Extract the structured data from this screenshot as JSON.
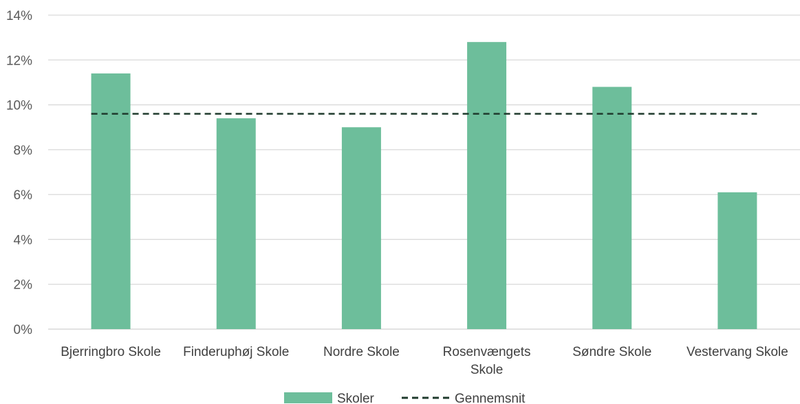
{
  "chart_data": {
    "type": "bar",
    "categories": [
      "Bjerringbro Skole",
      "Finderuphøj Skole",
      "Nordre Skole",
      "Rosenvængets Skole",
      "Søndre Skole",
      "Vestervang Skole"
    ],
    "category_lines": [
      [
        "Bjerringbro Skole"
      ],
      [
        "Finderuphøj Skole"
      ],
      [
        "Nordre Skole"
      ],
      [
        "Rosenvængets",
        "Skole"
      ],
      [
        "Søndre Skole"
      ],
      [
        "Vestervang Skole"
      ]
    ],
    "series": [
      {
        "name": "Skoler",
        "type": "bar",
        "values": [
          11.4,
          9.4,
          9.0,
          12.8,
          10.8,
          6.1
        ],
        "color": "#6dbe9b"
      },
      {
        "name": "Gennemsnit",
        "type": "line",
        "style": "dashed",
        "values": [
          9.6,
          9.6,
          9.6,
          9.6,
          9.6,
          9.6
        ],
        "color": "#1f3a2c"
      }
    ],
    "ylim": [
      0,
      14
    ],
    "yticks": [
      0,
      2,
      4,
      6,
      8,
      10,
      12,
      14
    ],
    "ytick_labels": [
      "0%",
      "2%",
      "4%",
      "6%",
      "8%",
      "10%",
      "12%",
      "14%"
    ],
    "grid": true,
    "legend": "bottom",
    "title": "",
    "xlabel": "",
    "ylabel": ""
  }
}
